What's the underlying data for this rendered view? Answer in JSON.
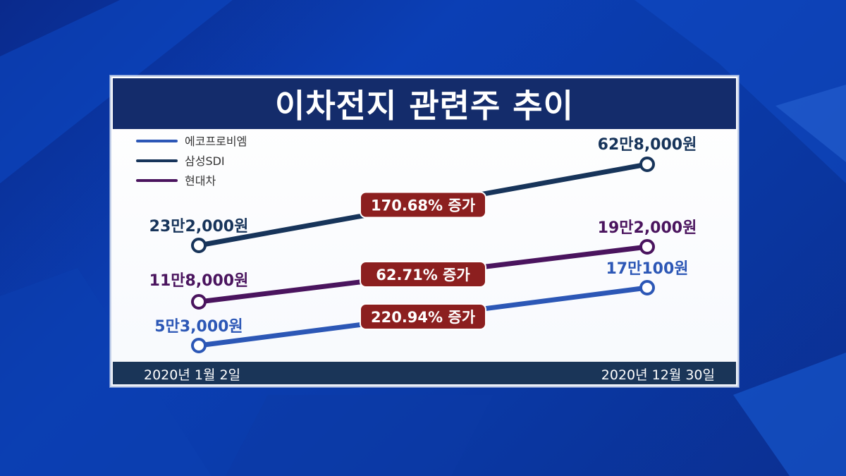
{
  "title": "이차전지 관련주 추이",
  "dates": {
    "start": "2020년 1월 2일",
    "end": "2020년 12월 30일"
  },
  "chart_data": {
    "type": "line",
    "title": "이차전지 관련주 추이",
    "x": [
      "2020년 1월 2일",
      "2020년 12월 30일"
    ],
    "legend_position": "top-left",
    "series": [
      {
        "name": "에코프로비엠",
        "color": "#2c57b6",
        "values": [
          53000,
          170100
        ],
        "value_labels": [
          "5만3,000원",
          "17만100원"
        ],
        "change_label": "220.94% 증가"
      },
      {
        "name": "삼성SDI",
        "color": "#17345a",
        "values": [
          232000,
          628000
        ],
        "value_labels": [
          "23만2,000원",
          "62만8,000원"
        ],
        "change_label": "170.68% 증가"
      },
      {
        "name": "현대차",
        "color": "#4a145e",
        "values": [
          118000,
          192000
        ],
        "value_labels": [
          "11만8,000원",
          "19만2,000원"
        ],
        "change_label": "62.71% 증가"
      }
    ],
    "change_label_color": "#8c1f1f"
  }
}
